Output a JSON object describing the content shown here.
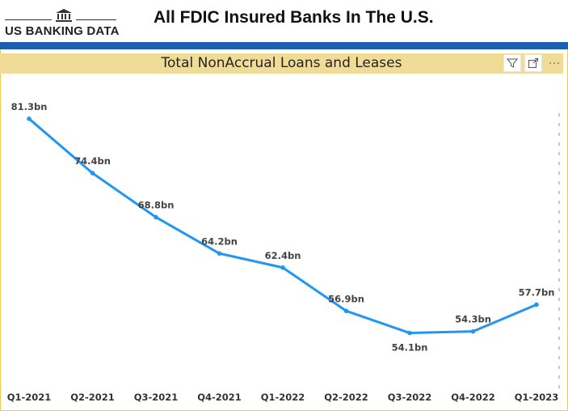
{
  "header": {
    "logo_text": "US BANKING DATA",
    "title": "All FDIC Insured Banks In The U.S."
  },
  "visual": {
    "title": "Total NonAccrual Loans and Leases",
    "icons": [
      "filter-icon",
      "focus-mode-icon",
      "more-options-icon"
    ],
    "more_label": "···"
  },
  "colors": {
    "accent": "#1a5fb4",
    "title_band": "#f0dc96",
    "line": "#2196f3"
  },
  "chart_data": {
    "type": "line",
    "title": "Total NonAccrual Loans and Leases",
    "categories": [
      "Q1-2021",
      "Q2-2021",
      "Q3-2021",
      "Q4-2021",
      "Q1-2022",
      "Q2-2022",
      "Q3-2022",
      "Q4-2022",
      "Q1-2023"
    ],
    "series": [
      {
        "values": [
          81.3,
          74.4,
          68.8,
          64.2,
          62.4,
          56.9,
          54.1,
          54.3,
          57.7
        ],
        "labels": [
          "81.3bn",
          "74.4bn",
          "68.8bn",
          "64.2bn",
          "62.4bn",
          "56.9bn",
          "54.1bn",
          "54.3bn",
          "57.7bn"
        ],
        "color": "#2196f3"
      }
    ],
    "label_position": [
      "above",
      "above",
      "above",
      "above",
      "above",
      "above",
      "below",
      "above",
      "above"
    ],
    "unit": "bn",
    "grid": false,
    "legend": "none"
  }
}
